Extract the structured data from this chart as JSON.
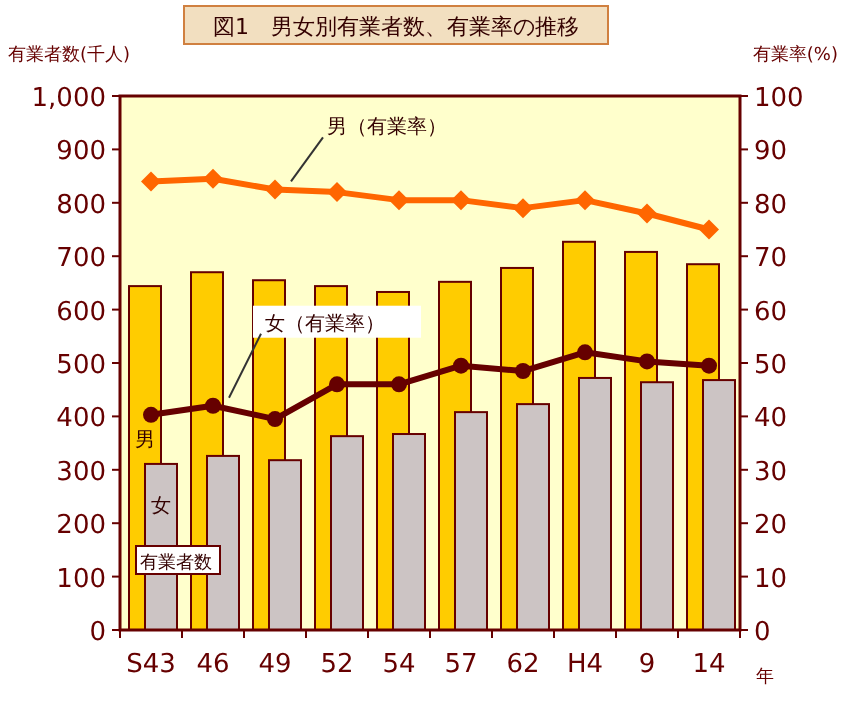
{
  "chart_data": {
    "type": "bar",
    "title": "図1　男女別有業者数、有業率の推移",
    "xlabel": "年",
    "ylabel": "有業者数(千人)",
    "y2label": "有業率(%)",
    "categories": [
      "S43",
      "46",
      "49",
      "52",
      "54",
      "57",
      "62",
      "H4",
      "9",
      "14"
    ],
    "ylim": [
      0,
      1000
    ],
    "yticks": [
      0,
      100,
      200,
      300,
      400,
      500,
      600,
      700,
      800,
      900,
      {
        "value": 1000,
        "label": "1,000"
      }
    ],
    "y2lim": [
      0,
      100
    ],
    "y2ticks": [
      0,
      10,
      20,
      30,
      40,
      50,
      60,
      70,
      80,
      90,
      100
    ],
    "series": [
      {
        "name": "男",
        "color": "#ffcc00",
        "values": [
          644,
          670,
          655,
          644,
          633,
          652,
          678,
          727,
          708,
          685
        ]
      },
      {
        "name": "女",
        "color": "#ccc4c4",
        "values": [
          311,
          326,
          318,
          363,
          367,
          408,
          423,
          472,
          464,
          468
        ]
      },
      {
        "type": "line",
        "name": "男（有業率）",
        "color": "#ff6600",
        "axis": "y2",
        "marker": "diamond",
        "values": [
          84,
          84.5,
          82.5,
          82,
          80.5,
          80.5,
          79,
          80.5,
          78,
          75
        ]
      },
      {
        "type": "line",
        "name": "女（有業率）",
        "color": "#660000",
        "axis": "y2",
        "marker": "circle",
        "values": [
          40.3,
          42,
          39.5,
          46,
          46,
          49.5,
          48.5,
          52,
          50.3,
          49.5
        ]
      }
    ],
    "annotations": [
      "有業者数"
    ]
  }
}
